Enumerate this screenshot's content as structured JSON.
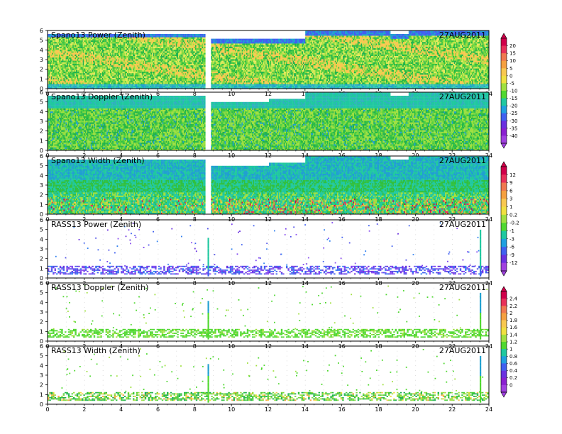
{
  "figure": {
    "date_label": "27AUG2011",
    "x_ticks": [
      "0",
      "2",
      "4",
      "6",
      "8",
      "10",
      "12",
      "14",
      "16",
      "18",
      "20",
      "22",
      "24"
    ],
    "xlim": [
      0,
      24
    ],
    "ylim": [
      0,
      6
    ],
    "y_ticks": [
      "0",
      "1",
      "2",
      "3",
      "4",
      "5",
      "6"
    ]
  },
  "panels": [
    {
      "title": "Spano13 Power (Zenith)",
      "date": "27AUG2011",
      "scale": 0,
      "style": "dense",
      "seed": 11
    },
    {
      "title": "Spano13 Doppler (Zenith)",
      "date": "27AUG2011",
      "scale": 0,
      "style": "dense-doppler",
      "seed": 23
    },
    {
      "title": "Spano13 Width (Zenith)",
      "date": "27AUG2011",
      "scale": 1,
      "style": "dense-width",
      "seed": 37
    },
    {
      "title": "RASS13 Power (Zenith)",
      "date": "27AUG2011",
      "scale": 1,
      "style": "rass-power",
      "seed": 41
    },
    {
      "title": "RASS13 Doppler (Zenith)",
      "date": "27AUG2011",
      "scale": 2,
      "style": "rass",
      "seed": 53
    },
    {
      "title": "RASS13 Width (Zenith)",
      "date": "27AUG2011",
      "scale": 2,
      "style": "rass-width",
      "seed": 67
    }
  ],
  "colorbars": [
    {
      "labels": [
        "20",
        "15",
        "10",
        "5",
        "0",
        "-5",
        "-10",
        "-15",
        "-20",
        "-25",
        "-30",
        "-35",
        "-40"
      ],
      "colors": [
        "#d0004a",
        "#e8305a",
        "#f07850",
        "#f5a040",
        "#f8c850",
        "#f0e040",
        "#a0e040",
        "#50d830",
        "#20c8a0",
        "#20a0e0",
        "#4060f0",
        "#6a30e0",
        "#8a20d0",
        "#a040e0"
      ]
    },
    {
      "labels": [
        "12",
        "9",
        "6",
        "3",
        "1",
        "0.2",
        "-0.2",
        "-1",
        "-3",
        "-6",
        "-9",
        "-12"
      ],
      "colors": [
        "#d0004a",
        "#e8305a",
        "#f07850",
        "#f5a040",
        "#f8c850",
        "#f0e040",
        "#a0e040",
        "#50d830",
        "#20c8a0",
        "#20a0e0",
        "#4060f0",
        "#6a30e0",
        "#a040e0"
      ]
    },
    {
      "labels": [
        "2.4",
        "2.2",
        "2",
        "1.8",
        "1.6",
        "1.4",
        "1.2",
        "1",
        "0.8",
        "0.6",
        "0.4",
        "0.2",
        "0"
      ],
      "colors": [
        "#d0004a",
        "#e8305a",
        "#f07850",
        "#f5a040",
        "#f8c850",
        "#f0e040",
        "#a0e040",
        "#50d830",
        "#20c8a0",
        "#20a0e0",
        "#4060f0",
        "#6a30e0",
        "#8a20d0",
        "#a040e0"
      ]
    }
  ],
  "chart_data": {
    "type": "heatmap",
    "x_unit_label": "",
    "xlim": [
      0,
      24
    ],
    "ylim": [
      0,
      6
    ],
    "panels": [
      "Spano13 Power (Zenith)",
      "Spano13 Doppler (Zenith)",
      "Spano13 Width (Zenith)",
      "RASS13 Power (Zenith)",
      "RASS13 Doppler (Zenith)",
      "RASS13 Width (Zenith)"
    ],
    "data_gap_hours": [
      8.6,
      8.8
    ],
    "colorbar_ranges": [
      [
        -40,
        20
      ],
      [
        -12,
        12
      ],
      [
        0,
        2.4
      ]
    ]
  }
}
